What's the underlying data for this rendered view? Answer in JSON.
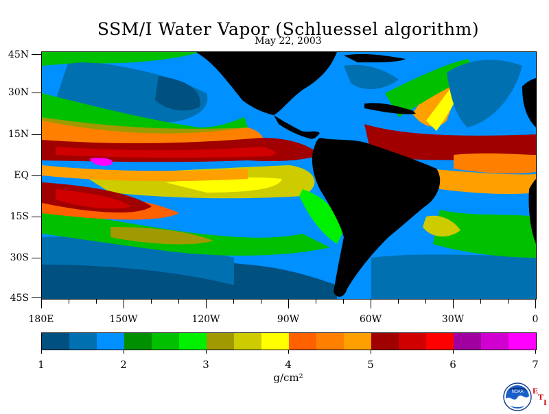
{
  "title": "SSM/I Water Vapor (Schluessel algorithm)",
  "date": "May 22, 2003",
  "lat_labels": [
    "45N",
    "30N",
    "15N",
    "EQ",
    "15S",
    "30S",
    "45S"
  ],
  "lon_labels": [
    "180E",
    "150W",
    "120W",
    "90W",
    "60W",
    "30W",
    "0"
  ],
  "colorbar": {
    "colors": [
      "#005080",
      "#0070b0",
      "#0090ff",
      "#008f00",
      "#00c000",
      "#00f000",
      "#a09a00",
      "#cccc00",
      "#ffff00",
      "#ff6000",
      "#ff8000",
      "#ffa000",
      "#a00000",
      "#d00000",
      "#ff0000",
      "#a000a0",
      "#d000d0",
      "#ff00ff"
    ],
    "labels": [
      "1",
      "2",
      "3",
      "4",
      "5",
      "6",
      "7"
    ],
    "units": "g/cm²"
  },
  "logo": {
    "icon": "noaa-logo-icon",
    "text": "NOAA",
    "eti_top": "E",
    "eti_t": "T",
    "eti_i": "I"
  }
}
